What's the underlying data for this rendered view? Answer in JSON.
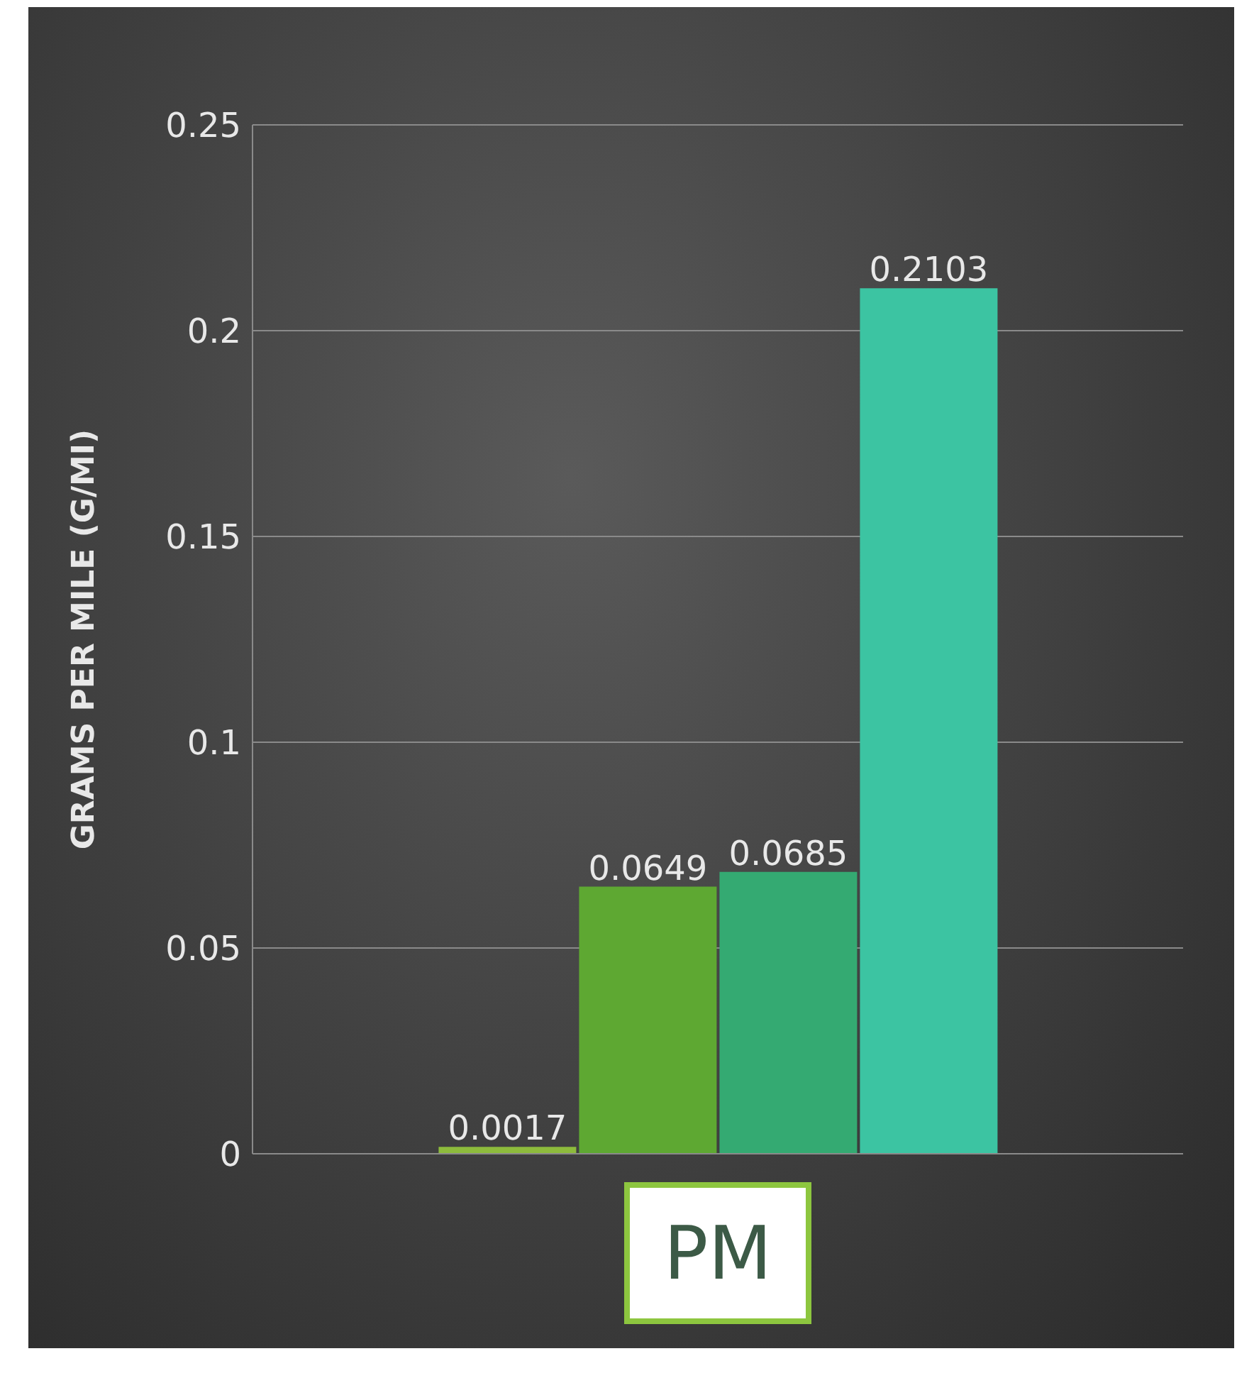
{
  "chart_data": {
    "type": "bar",
    "ylabel": "GRAMS PER MILE (G/MI)",
    "categories": [
      "PM"
    ],
    "series": [
      {
        "color": "#8dbb3c",
        "values": [
          0.0017
        ]
      },
      {
        "color": "#5ea832",
        "values": [
          0.0649
        ]
      },
      {
        "color": "#34aa72",
        "values": [
          0.0685
        ]
      },
      {
        "color": "#3cc4a2",
        "values": [
          0.2103
        ]
      }
    ],
    "ylim": [
      0,
      0.25
    ],
    "yticks": [
      0,
      0.05,
      0.1,
      0.15,
      0.2,
      0.25
    ],
    "grid": "y",
    "data_labels": true
  }
}
